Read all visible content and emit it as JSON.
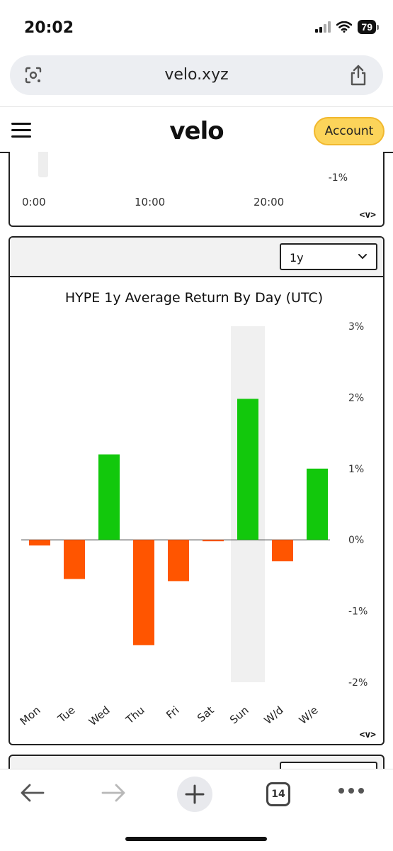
{
  "status_bar": {
    "time": "20:02",
    "battery": "79"
  },
  "address_bar": {
    "url": "velo.xyz"
  },
  "header": {
    "logo": "velo",
    "account_label": "Account"
  },
  "panel_top": {
    "y_label": "-1%",
    "x_labels": [
      "0:00",
      "10:00",
      "20:00"
    ],
    "nav": "<v>"
  },
  "panel": {
    "range_value": "1y",
    "nav": "<v>"
  },
  "toolbar": {
    "tab_count": "14"
  },
  "colors": {
    "positive": "#12c80c",
    "negative": "#ff5500",
    "highlight": "#f0f0f0",
    "account": "#fcd45a"
  },
  "chart_data": {
    "type": "bar",
    "title": "HYPE 1y Average Return By Day (UTC)",
    "categories": [
      "Mon",
      "Tue",
      "Wed",
      "Thu",
      "Fri",
      "Sat",
      "Sun",
      "W/d",
      "W/e"
    ],
    "values": [
      -0.08,
      -0.55,
      1.2,
      -1.48,
      -0.58,
      -0.02,
      1.98,
      -0.3,
      1.0
    ],
    "ylim": [
      -2,
      3
    ],
    "yticks": [
      3,
      2,
      1,
      0,
      -1,
      -2
    ],
    "ytick_labels": [
      "3%",
      "2%",
      "1%",
      "0%",
      "-1%",
      "-2%"
    ],
    "highlighted_category": "Sun",
    "ylabel": "",
    "xlabel": ""
  }
}
